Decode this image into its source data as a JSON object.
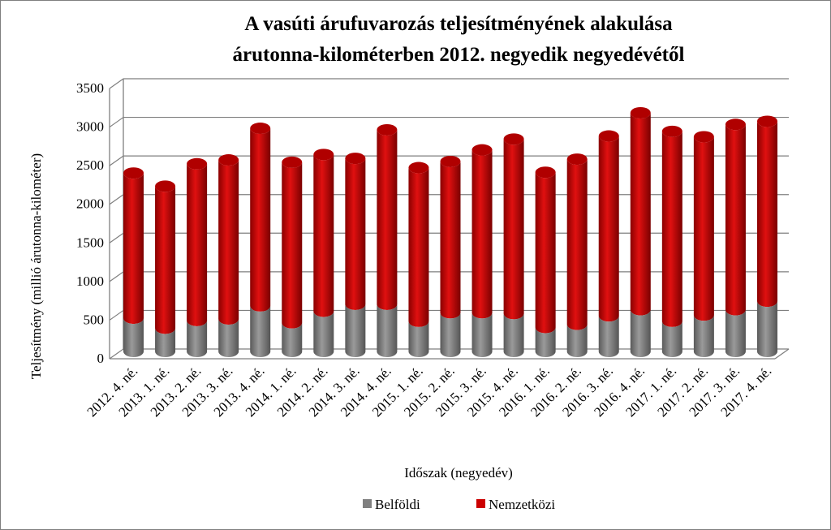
{
  "chart_data": {
    "type": "bar",
    "stacked": true,
    "style": "3d-cylinder",
    "title_lines": [
      "A vasúti árufuvarozás  teljesítményének  alakulása",
      "árutonna-kilométerben  2012. negyedik  negyedévétől"
    ],
    "xlabel": "Időszak (negyedév)",
    "ylabel": "Teljesítmény  (millió árutonna-kilométer)",
    "ylim": [
      0,
      3500
    ],
    "yticks": [
      0,
      500,
      1000,
      1500,
      2000,
      2500,
      3000,
      3500
    ],
    "grid": true,
    "legend_position": "bottom",
    "categories": [
      "2012. 4. né.",
      "2013. 1. né.",
      "2013. 2. né.",
      "2013. 3. né.",
      "2013. 4. né.",
      "2014. 1. né.",
      "2014. 2. né.",
      "2014. 3. né.",
      "2014. 4. né.",
      "2015. 1. né.",
      "2015. 2. né.",
      "2015. 3. né.",
      "2015. 4. né.",
      "2016. 1. né.",
      "2016. 2. né.",
      "2016. 3. né.",
      "2016. 4. né.",
      "2017. 1. né.",
      "2017. 2. né.",
      "2017. 3. né.",
      "2017. 4. né."
    ],
    "series": [
      {
        "name": "Belföldi",
        "color": "#808080",
        "values": [
          430,
          300,
          400,
          420,
          590,
          370,
          520,
          610,
          610,
          390,
          500,
          500,
          490,
          310,
          350,
          460,
          540,
          390,
          470,
          540,
          650
        ]
      },
      {
        "name": "Nemzetközi",
        "color": "#cc0000",
        "values": [
          1880,
          1840,
          2030,
          2060,
          2300,
          2080,
          2030,
          1890,
          2260,
          1990,
          1960,
          2110,
          2260,
          2010,
          2140,
          2330,
          2550,
          2460,
          2310,
          2400,
          2330
        ]
      }
    ]
  }
}
